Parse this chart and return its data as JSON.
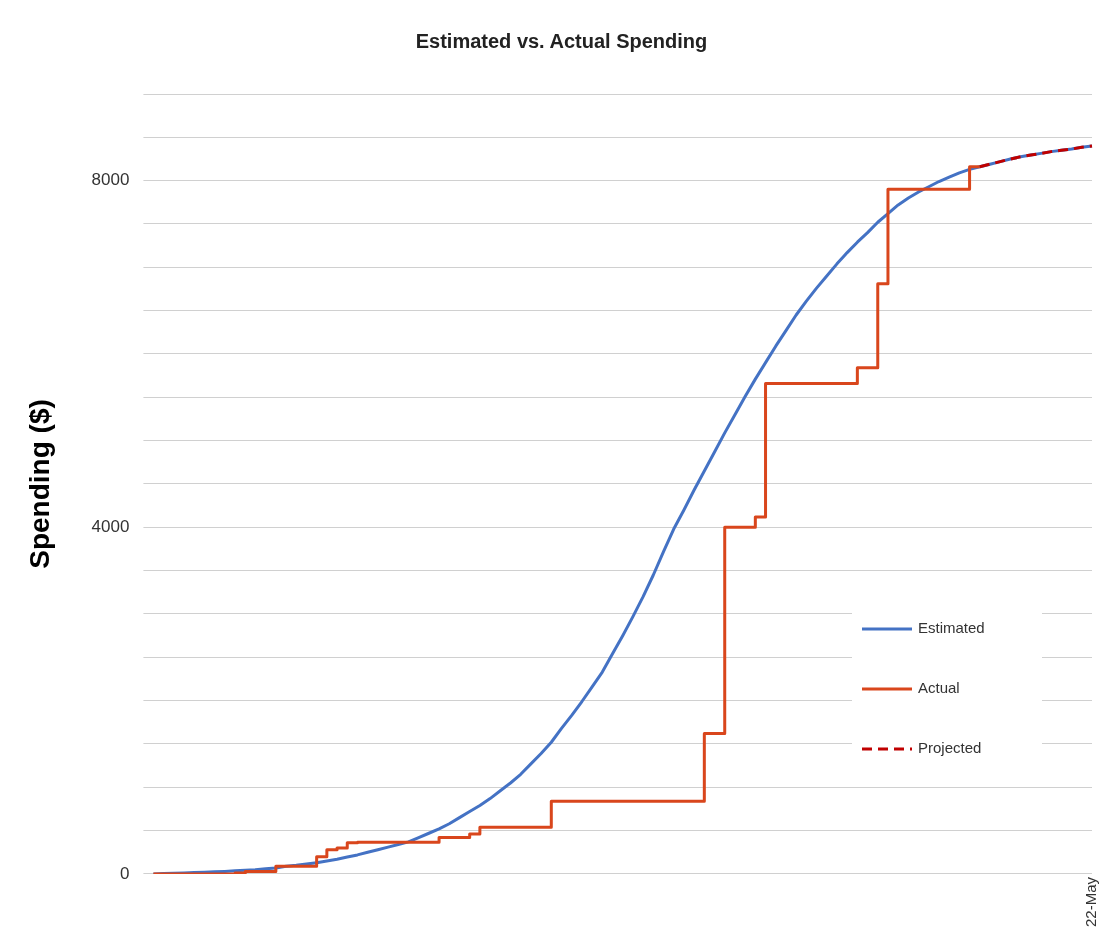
{
  "chart_data": {
    "type": "line",
    "title": "Estimated vs. Actual Spending",
    "ylabel": "Spending ($)",
    "categories": [
      null,
      null,
      null,
      null,
      null,
      null,
      null,
      null,
      null,
      null,
      null,
      null,
      null,
      null,
      null,
      null,
      null,
      null,
      null,
      null,
      null,
      null,
      null,
      null,
      null,
      null,
      null,
      null,
      null,
      null,
      null,
      null,
      null,
      null,
      null,
      null,
      null,
      null,
      null,
      null,
      null,
      null,
      null,
      null,
      null,
      null,
      null,
      null,
      null,
      null,
      null,
      null,
      null,
      null,
      null,
      null,
      null,
      null,
      null,
      null,
      null,
      null,
      null,
      null,
      null,
      null,
      null,
      null,
      null,
      null,
      null,
      null,
      null,
      null,
      null,
      null,
      null,
      null,
      null,
      null,
      null,
      null,
      null,
      null,
      null,
      null,
      null,
      null,
      null,
      null,
      null,
      null,
      "22-May"
    ],
    "series": [
      {
        "name": "Estimated",
        "type": "line",
        "color": "#4472c4",
        "values": [
          0,
          5,
          8,
          12,
          16,
          20,
          25,
          30,
          36,
          43,
          50,
          60,
          70,
          90,
          100,
          115,
          130,
          150,
          170,
          195,
          220,
          250,
          280,
          310,
          340,
          370,
          420,
          470,
          520,
          580,
          650,
          720,
          790,
          870,
          960,
          1050,
          1150,
          1270,
          1390,
          1520,
          1680,
          1830,
          1990,
          2160,
          2330,
          2540,
          2750,
          2970,
          3200,
          3450,
          3720,
          3980,
          4200,
          4430,
          4650,
          4870,
          5090,
          5300,
          5510,
          5710,
          5900,
          6090,
          6270,
          6450,
          6610,
          6760,
          6900,
          7040,
          7170,
          7290,
          7400,
          7520,
          7620,
          7720,
          7800,
          7870,
          7930,
          7990,
          8040,
          8090,
          8130,
          8160,
          8190,
          8220,
          8250,
          8275,
          8295,
          8315,
          8335,
          8350,
          8365,
          8385,
          8400
        ]
      },
      {
        "name": "Actual",
        "type": "step",
        "color": "#d9461c",
        "values": [
          0,
          0,
          0,
          0,
          0,
          0,
          0,
          0,
          0,
          10,
          30,
          30,
          30,
          90,
          90,
          90,
          90,
          200,
          280,
          300,
          360,
          365,
          365,
          365,
          365,
          365,
          365,
          365,
          365,
          420,
          420,
          420,
          460,
          540,
          540,
          540,
          540,
          540,
          540,
          540,
          840,
          840,
          840,
          840,
          840,
          840,
          840,
          840,
          840,
          840,
          840,
          840,
          840,
          840,
          840,
          1620,
          1620,
          4000,
          4000,
          4000,
          4120,
          5660,
          5660,
          5660,
          5660,
          5660,
          5660,
          5660,
          5660,
          5660,
          5840,
          5840,
          6810,
          7900,
          7900,
          7900,
          7900,
          7900,
          7900,
          7900,
          7900,
          8160,
          null,
          null,
          null,
          null,
          null,
          null,
          null,
          null,
          null,
          null,
          null
        ]
      },
      {
        "name": "Projected",
        "type": "line",
        "line_style": "dashed",
        "color": "#c00000",
        "values": [
          null,
          null,
          null,
          null,
          null,
          null,
          null,
          null,
          null,
          null,
          null,
          null,
          null,
          null,
          null,
          null,
          null,
          null,
          null,
          null,
          null,
          null,
          null,
          null,
          null,
          null,
          null,
          null,
          null,
          null,
          null,
          null,
          null,
          null,
          null,
          null,
          null,
          null,
          null,
          null,
          null,
          null,
          null,
          null,
          null,
          null,
          null,
          null,
          null,
          null,
          null,
          null,
          null,
          null,
          null,
          null,
          null,
          null,
          null,
          null,
          null,
          null,
          null,
          null,
          null,
          null,
          null,
          null,
          null,
          null,
          null,
          null,
          null,
          null,
          null,
          null,
          null,
          null,
          null,
          null,
          null,
          8160,
          8190,
          8220,
          8250,
          8275,
          8295,
          8315,
          8335,
          8350,
          8365,
          8385,
          8400
        ]
      }
    ],
    "ylim": [
      0,
      9000
    ],
    "yticks": [
      0,
      {
        "value": 500,
        "label": null
      },
      {
        "value": 1000,
        "label": null
      },
      {
        "value": 1500,
        "label": null
      },
      {
        "value": 2000,
        "label": null
      },
      {
        "value": 2500,
        "label": null
      },
      {
        "value": 3000,
        "label": null
      },
      {
        "value": 3500,
        "label": null
      },
      4000,
      {
        "value": 4500,
        "label": null
      },
      {
        "value": 5000,
        "label": null
      },
      {
        "value": 5500,
        "label": null
      },
      {
        "value": 6000,
        "label": null
      },
      {
        "value": 6500,
        "label": null
      },
      {
        "value": 7000,
        "label": null
      },
      {
        "value": 7500,
        "label": null
      },
      8000,
      {
        "value": 8500,
        "label": null
      },
      {
        "value": 9000,
        "label": null
      }
    ],
    "grid": "y",
    "legend": "bottom right",
    "marker": "none",
    "line_style": "solid"
  }
}
